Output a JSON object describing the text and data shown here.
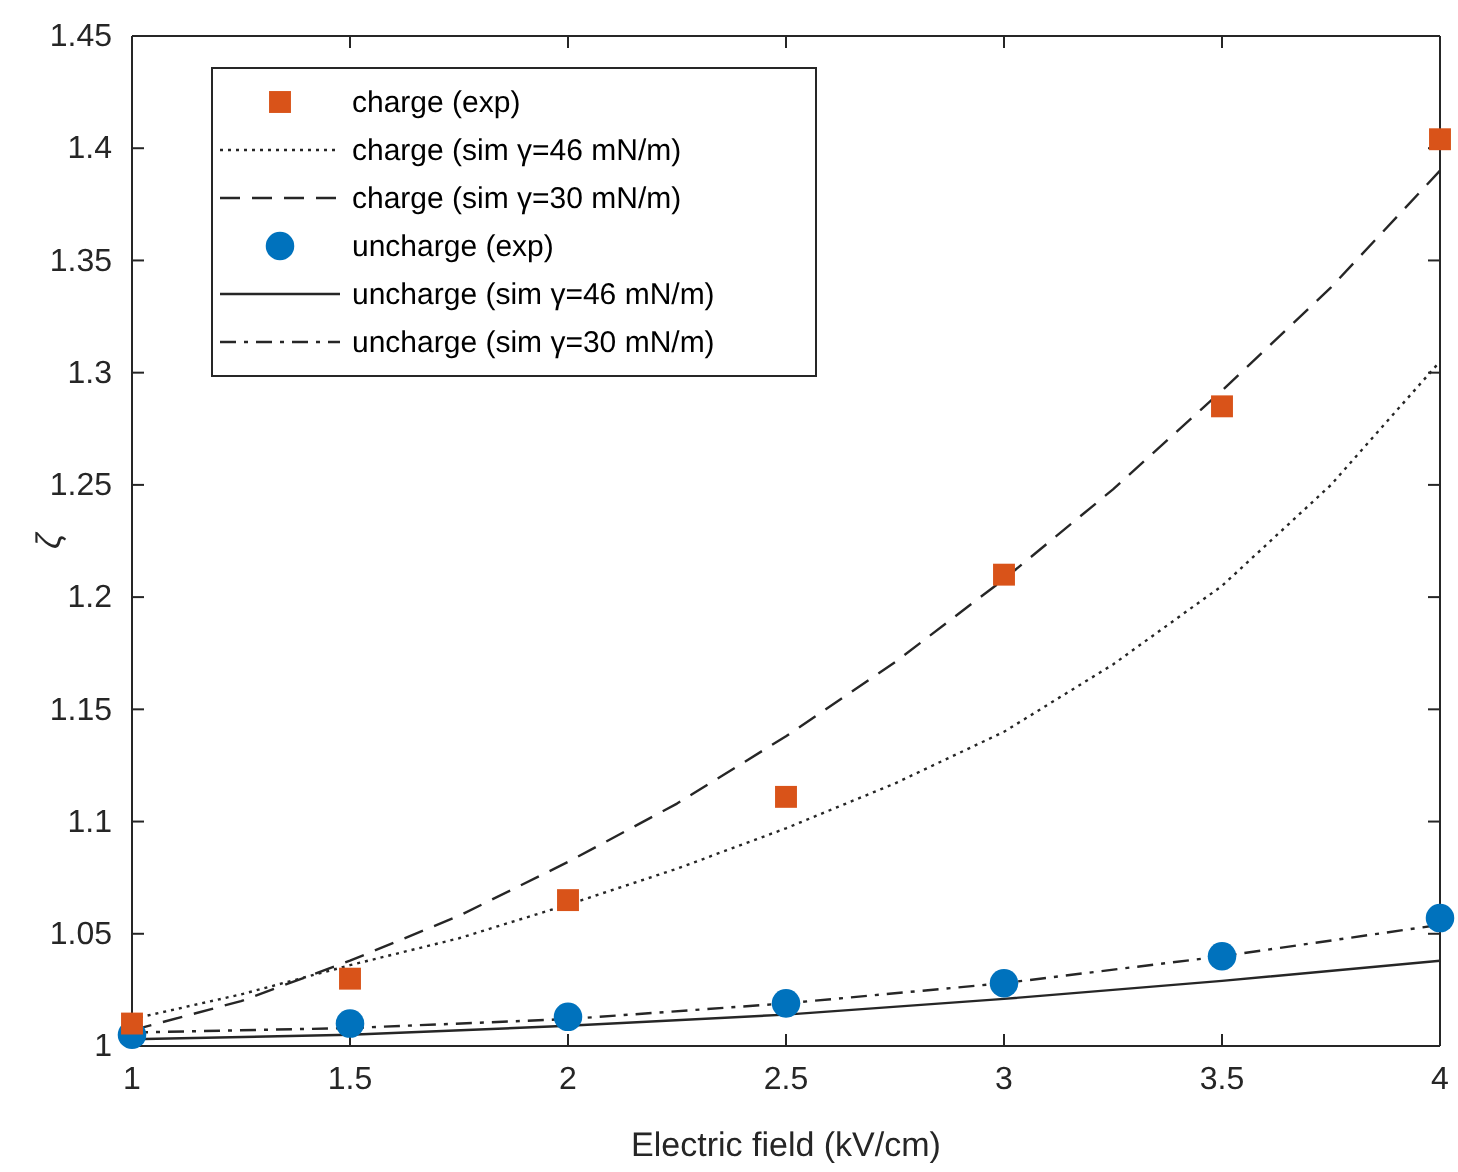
{
  "chart_data": {
    "type": "line",
    "xlabel": "Electric field (kV/cm)",
    "ylabel": "ζ",
    "xlim": [
      1,
      4
    ],
    "xticks": [
      1,
      1.5,
      2,
      2.5,
      3,
      3.5,
      4
    ],
    "ylim": [
      1,
      1.45
    ],
    "yticks": [
      1,
      1.05,
      1.1,
      1.15,
      1.2,
      1.25,
      1.3,
      1.35,
      1.4,
      1.45
    ],
    "grid": false,
    "legend": "top left",
    "series": [
      {
        "name": "charge (exp)",
        "type": "scatter",
        "marker": "square",
        "color": "#d95319",
        "x": [
          1,
          1.5,
          2,
          2.5,
          3,
          3.5,
          4
        ],
        "values": [
          1.01,
          1.03,
          1.065,
          1.111,
          1.21,
          1.285,
          1.404
        ]
      },
      {
        "name": "charge (sim γ=46 mN/m)",
        "line_style": "dotted",
        "marker": "none",
        "color": "#262626",
        "x": [
          1,
          1.25,
          1.5,
          1.75,
          2,
          2.25,
          2.5,
          2.75,
          3,
          3.25,
          3.5,
          3.75,
          4
        ],
        "values": [
          1.012,
          1.023,
          1.036,
          1.048,
          1.063,
          1.079,
          1.097,
          1.117,
          1.14,
          1.17,
          1.205,
          1.25,
          1.305
        ]
      },
      {
        "name": "charge (sim γ=30 mN/m)",
        "line_style": "dashed",
        "marker": "none",
        "color": "#262626",
        "x": [
          1,
          1.25,
          1.5,
          1.75,
          2,
          2.25,
          2.5,
          2.75,
          3,
          3.25,
          3.5,
          3.75,
          4
        ],
        "values": [
          1.007,
          1.02,
          1.038,
          1.058,
          1.082,
          1.108,
          1.138,
          1.171,
          1.208,
          1.248,
          1.292,
          1.338,
          1.39
        ]
      },
      {
        "name": "uncharge (exp)",
        "type": "scatter",
        "marker": "circle",
        "color": "#0072bd",
        "x": [
          1,
          1.5,
          2,
          2.5,
          3,
          3.5,
          4
        ],
        "values": [
          1.005,
          1.01,
          1.013,
          1.019,
          1.028,
          1.04,
          1.057
        ]
      },
      {
        "name": "uncharge (sim γ=46 mN/m)",
        "line_style": "solid",
        "marker": "none",
        "color": "#262626",
        "x": [
          1,
          1.5,
          2,
          2.5,
          3,
          3.5,
          4
        ],
        "values": [
          1.003,
          1.005,
          1.009,
          1.014,
          1.021,
          1.029,
          1.038
        ]
      },
      {
        "name": "uncharge (sim γ=30 mN/m)",
        "line_style": "dashdot",
        "marker": "none",
        "color": "#262626",
        "x": [
          1,
          1.5,
          2,
          2.5,
          3,
          3.5,
          4
        ],
        "values": [
          1.006,
          1.008,
          1.012,
          1.019,
          1.028,
          1.04,
          1.054
        ]
      }
    ]
  }
}
